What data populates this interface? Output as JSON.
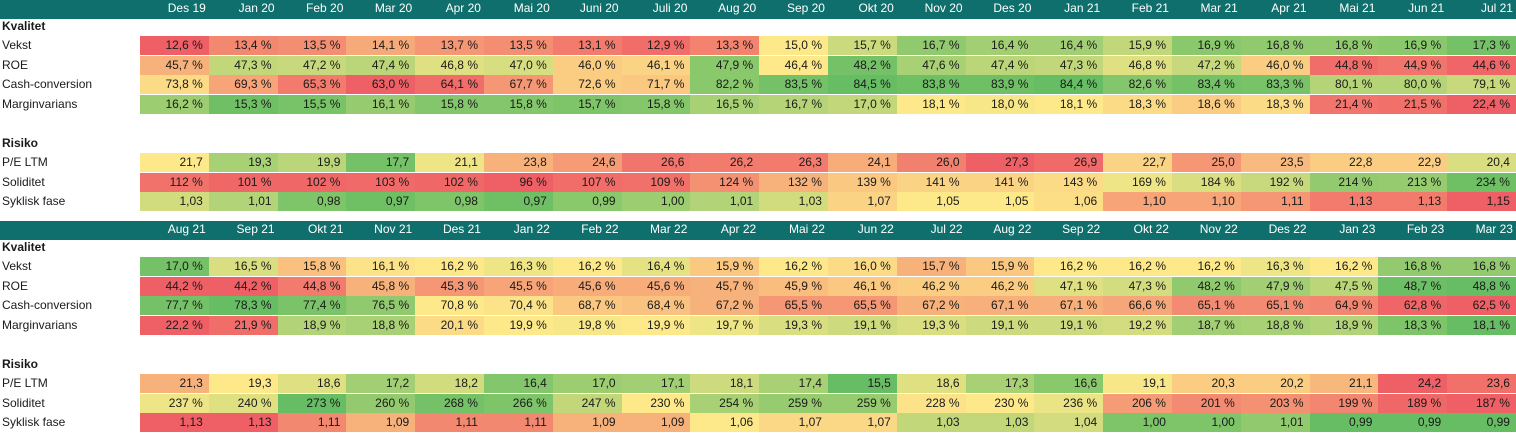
{
  "palette": {
    "header_bg": "#0f6f6c",
    "red": "#ef5f66",
    "yellow": "#fde98a",
    "green": "#66bd63"
  },
  "tables": [
    {
      "months": [
        "Des 19",
        "Jan 20",
        "Feb 20",
        "Mar 20",
        "Apr 20",
        "Mai 20",
        "Juni 20",
        "Juli 20",
        "Aug 20",
        "Sep 20",
        "Okt 20",
        "Nov 20",
        "Des 20",
        "Jan 21",
        "Feb 21",
        "Mar 21",
        "Apr 21",
        "Mai 21",
        "Jun 21",
        "Jul 21"
      ],
      "sections": [
        {
          "title": "Kvalitet",
          "rows": [
            {
              "label": "Vekst",
              "values": [
                "12,6 %",
                "13,4 %",
                "13,5 %",
                "14,1 %",
                "13,7 %",
                "13,5 %",
                "13,1 %",
                "12,9 %",
                "13,3 %",
                "15,0 %",
                "15,7 %",
                "16,7 %",
                "16,4 %",
                "16,4 %",
                "15,9 %",
                "16,9 %",
                "16,8 %",
                "16,8 %",
                "16,9 %",
                "17,3 %"
              ],
              "scores": [
                0,
                0.15,
                0.17,
                0.27,
                0.2,
                0.17,
                0.1,
                0.05,
                0.13,
                0.5,
                0.67,
                0.86,
                0.8,
                0.8,
                0.7,
                0.88,
                0.86,
                0.86,
                0.88,
                0.95
              ]
            },
            {
              "label": "ROE",
              "values": [
                "45,7 %",
                "47,3 %",
                "47,2 %",
                "47,4 %",
                "46,8 %",
                "47,0 %",
                "46,0 %",
                "46,1 %",
                "47,9 %",
                "46,4 %",
                "48,2 %",
                "47,6 %",
                "47,4 %",
                "47,3 %",
                "46,8 %",
                "47,2 %",
                "46,0 %",
                "44,8 %",
                "44,9 %",
                "44,6 %"
              ],
              "scores": [
                0.3,
                0.7,
                0.68,
                0.72,
                0.6,
                0.63,
                0.4,
                0.42,
                0.88,
                0.5,
                0.95,
                0.78,
                0.72,
                0.7,
                0.6,
                0.68,
                0.4,
                0.05,
                0.08,
                0.02
              ]
            },
            {
              "label": "Cash-conversion",
              "values": [
                "73,8 %",
                "69,3 %",
                "65,3 %",
                "63,0 %",
                "64,1 %",
                "67,7 %",
                "72,6 %",
                "71,7 %",
                "82,2 %",
                "83,5 %",
                "84,5 %",
                "83,8 %",
                "83,9 %",
                "84,4 %",
                "82,6 %",
                "83,4 %",
                "83,3 %",
                "80,1 %",
                "80,0 %",
                "79,1 %"
              ],
              "scores": [
                0.45,
                0.25,
                0.1,
                0,
                0.05,
                0.2,
                0.4,
                0.38,
                0.88,
                0.95,
                1,
                0.97,
                0.97,
                1,
                0.9,
                0.95,
                0.94,
                0.74,
                0.74,
                0.68
              ]
            },
            {
              "label": "Marginvarians",
              "values": [
                "16,2 %",
                "15,3 %",
                "15,5 %",
                "16,1 %",
                "15,8 %",
                "15,8 %",
                "15,7 %",
                "15,8 %",
                "16,5 %",
                "16,7 %",
                "17,0 %",
                "18,1 %",
                "18,0 %",
                "18,1 %",
                "18,3 %",
                "18,6 %",
                "18,3 %",
                "21,4 %",
                "21,5 %",
                "22,4 %"
              ],
              "scores": [
                0.82,
                0.97,
                0.94,
                0.84,
                0.9,
                0.9,
                0.92,
                0.9,
                0.78,
                0.74,
                0.7,
                0.5,
                0.52,
                0.5,
                0.45,
                0.4,
                0.45,
                0.08,
                0.06,
                0
              ]
            }
          ]
        },
        {
          "title": "Risiko",
          "rows": [
            {
              "label": "P/E LTM",
              "values": [
                "21,7",
                "19,3",
                "19,9",
                "17,7",
                "21,1",
                "23,8",
                "24,6",
                "26,6",
                "26,2",
                "26,3",
                "24,1",
                "26,0",
                "27,3",
                "26,9",
                "22,7",
                "25,0",
                "23,5",
                "22,8",
                "22,9",
                "20,4"
              ],
              "scores": [
                0.5,
                0.78,
                0.72,
                0.95,
                0.55,
                0.3,
                0.22,
                0.08,
                0.1,
                0.1,
                0.28,
                0.12,
                0,
                0.04,
                0.42,
                0.2,
                0.33,
                0.4,
                0.4,
                0.62
              ]
            },
            {
              "label": "Soliditet",
              "values": [
                "112 %",
                "101 %",
                "102 %",
                "103 %",
                "102 %",
                "96 %",
                "107 %",
                "109 %",
                "124 %",
                "132 %",
                "139 %",
                "141 %",
                "141 %",
                "143 %",
                "169 %",
                "184 %",
                "192 %",
                "214 %",
                "213 %",
                "234 %"
              ],
              "scores": [
                0.07,
                0.03,
                0.03,
                0.04,
                0.03,
                0,
                0.05,
                0.06,
                0.18,
                0.3,
                0.38,
                0.42,
                0.42,
                0.45,
                0.55,
                0.62,
                0.68,
                0.85,
                0.84,
                0.97
              ]
            },
            {
              "label": "Syklisk fase",
              "values": [
                "1,03",
                "1,01",
                "0,98",
                "0,97",
                "0,98",
                "0,97",
                "0,99",
                "1,00",
                "1,01",
                "1,03",
                "1,07",
                "1,05",
                "1,05",
                "1,06",
                "1,10",
                "1,10",
                "1,11",
                "1,13",
                "1,13",
                "1,15"
              ],
              "scores": [
                0.65,
                0.75,
                0.92,
                0.97,
                0.92,
                0.97,
                0.88,
                0.82,
                0.75,
                0.65,
                0.42,
                0.5,
                0.5,
                0.46,
                0.25,
                0.25,
                0.2,
                0.1,
                0.1,
                0
              ]
            }
          ]
        }
      ]
    },
    {
      "months": [
        "Aug 21",
        "Sep 21",
        "Okt 21",
        "Nov 21",
        "Des 21",
        "Jan 22",
        "Feb 22",
        "Mar 22",
        "Apr 22",
        "Mai 22",
        "Jun 22",
        "Jul 22",
        "Aug 22",
        "Sep 22",
        "Okt 22",
        "Nov 22",
        "Des 22",
        "Jan 23",
        "Feb 23",
        "Mar 23"
      ],
      "sections": [
        {
          "title": "Kvalitet",
          "rows": [
            {
              "label": "Vekst",
              "values": [
                "17,0 %",
                "16,5 %",
                "15,8 %",
                "16,1 %",
                "16,2 %",
                "16,3 %",
                "16,2 %",
                "16,4 %",
                "15,9 %",
                "16,2 %",
                "16,0 %",
                "15,7 %",
                "15,9 %",
                "16,2 %",
                "16,2 %",
                "16,2 %",
                "16,3 %",
                "16,2 %",
                "16,8 %",
                "16,8 %"
              ],
              "scores": [
                0.95,
                0.62,
                0.35,
                0.48,
                0.5,
                0.55,
                0.5,
                0.58,
                0.38,
                0.5,
                0.45,
                0.3,
                0.38,
                0.5,
                0.5,
                0.5,
                0.55,
                0.5,
                0.85,
                0.85
              ]
            },
            {
              "label": "ROE",
              "values": [
                "44,2 %",
                "44,2 %",
                "44,8 %",
                "45,8 %",
                "45,3 %",
                "45,5 %",
                "45,6 %",
                "45,6 %",
                "45,7 %",
                "45,9 %",
                "46,1 %",
                "46,2 %",
                "46,2 %",
                "47,1 %",
                "47,3 %",
                "48,2 %",
                "47,9 %",
                "47,5 %",
                "48,7 %",
                "48,8 %"
              ],
              "scores": [
                0,
                0,
                0.1,
                0.3,
                0.2,
                0.25,
                0.28,
                0.28,
                0.3,
                0.34,
                0.38,
                0.4,
                0.4,
                0.6,
                0.64,
                0.86,
                0.8,
                0.72,
                0.98,
                1
              ]
            },
            {
              "label": "Cash-conversion",
              "values": [
                "77,7 %",
                "78,3 %",
                "77,4 %",
                "76,5 %",
                "70,8 %",
                "70,4 %",
                "68,7 %",
                "68,4 %",
                "67,2 %",
                "65,5 %",
                "65,5 %",
                "67,2 %",
                "67,1 %",
                "67,1 %",
                "66,6 %",
                "65,1 %",
                "65,1 %",
                "64,9 %",
                "62,8 %",
                "62,5 %"
              ],
              "scores": [
                0.95,
                1,
                0.93,
                0.86,
                0.5,
                0.48,
                0.38,
                0.36,
                0.3,
                0.2,
                0.2,
                0.3,
                0.29,
                0.29,
                0.26,
                0.16,
                0.16,
                0.14,
                0.02,
                0
              ]
            },
            {
              "label": "Marginvarians",
              "values": [
                "22,2 %",
                "21,9 %",
                "18,9 %",
                "18,8 %",
                "20,1 %",
                "19,9 %",
                "19,8 %",
                "19,9 %",
                "19,7 %",
                "19,3 %",
                "19,1 %",
                "19,3 %",
                "19,1 %",
                "19,1 %",
                "19,2 %",
                "18,7 %",
                "18,8 %",
                "18,9 %",
                "18,3 %",
                "18,1 %"
              ],
              "scores": [
                0,
                0.05,
                0.75,
                0.78,
                0.45,
                0.5,
                0.52,
                0.5,
                0.55,
                0.62,
                0.66,
                0.62,
                0.66,
                0.66,
                0.64,
                0.8,
                0.78,
                0.75,
                0.92,
                1
              ]
            }
          ]
        },
        {
          "title": "Risiko",
          "rows": [
            {
              "label": "P/E LTM",
              "values": [
                "21,3",
                "19,3",
                "18,6",
                "17,2",
                "18,2",
                "16,4",
                "17,0",
                "17,1",
                "18,1",
                "17,4",
                "15,5",
                "18,6",
                "17,3",
                "16,6",
                "19,1",
                "20,3",
                "20,2",
                "21,1",
                "24,2",
                "23,6"
              ],
              "scores": [
                0.3,
                0.5,
                0.6,
                0.8,
                0.65,
                0.9,
                0.82,
                0.8,
                0.66,
                0.78,
                1,
                0.6,
                0.78,
                0.88,
                0.52,
                0.4,
                0.4,
                0.32,
                0,
                0.06
              ]
            },
            {
              "label": "Soliditet",
              "values": [
                "237 %",
                "240 %",
                "273 %",
                "260 %",
                "268 %",
                "266 %",
                "247 %",
                "230 %",
                "254 %",
                "259 %",
                "259 %",
                "228 %",
                "230 %",
                "236 %",
                "206 %",
                "201 %",
                "203 %",
                "199 %",
                "189 %",
                "187 %"
              ],
              "scores": [
                0.55,
                0.6,
                1,
                0.85,
                0.95,
                0.92,
                0.7,
                0.5,
                0.78,
                0.84,
                0.84,
                0.48,
                0.5,
                0.56,
                0.22,
                0.16,
                0.18,
                0.14,
                0.03,
                0
              ]
            },
            {
              "label": "Syklisk fase",
              "values": [
                "1,13",
                "1,13",
                "1,11",
                "1,09",
                "1,11",
                "1,11",
                "1,09",
                "1,09",
                "1,06",
                "1,07",
                "1,07",
                "1,03",
                "1,03",
                "1,04",
                "1,00",
                "1,00",
                "1,01",
                "0,99",
                "0,99",
                "0,99"
              ],
              "scores": [
                0,
                0,
                0.15,
                0.3,
                0.15,
                0.15,
                0.3,
                0.3,
                0.5,
                0.44,
                0.44,
                0.7,
                0.7,
                0.64,
                0.92,
                0.92,
                0.86,
                1,
                1,
                1
              ]
            }
          ]
        }
      ]
    }
  ]
}
